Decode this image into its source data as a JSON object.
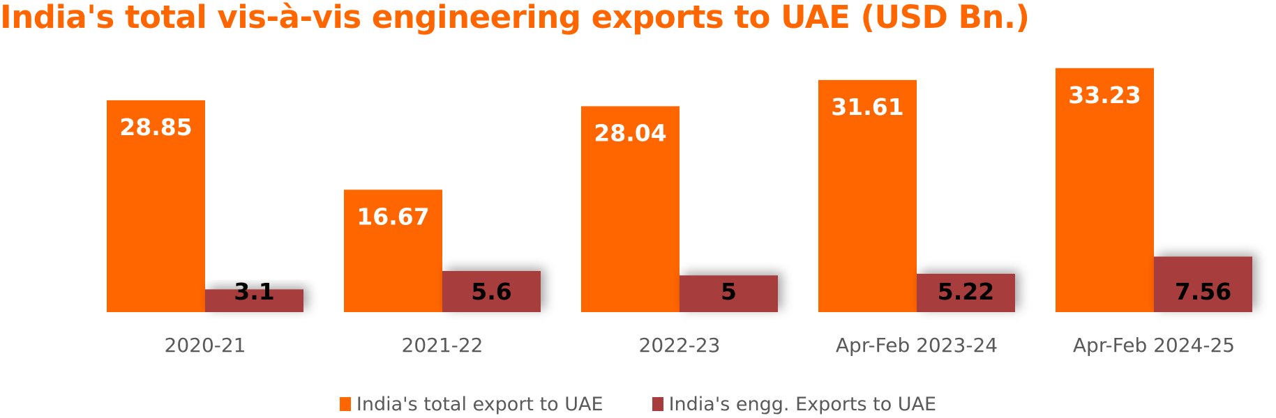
{
  "chart_data": {
    "type": "bar",
    "title": "India's total vis-à-vis engineering exports to UAE (USD Bn.)",
    "xlabel": "",
    "ylabel": "",
    "categories": [
      "2020-21",
      "2021-22",
      "2022-23",
      "Apr-Feb 2023-24",
      "Apr-Feb 2024-25"
    ],
    "series": [
      {
        "name": "India's total export to UAE",
        "color": "#FF6600",
        "label_color": "#FFFFFF",
        "values": [
          28.85,
          16.67,
          28.04,
          31.61,
          33.23
        ],
        "labels": [
          "28.85",
          "16.67",
          "28.04",
          "31.61",
          "33.23"
        ]
      },
      {
        "name": "India's engg. Exports to UAE",
        "color": "#A83C3C",
        "label_color": "#000000",
        "values": [
          3.1,
          5.6,
          5,
          5.22,
          7.56
        ],
        "labels": [
          "3.1",
          "5.6",
          "5",
          "5.22",
          "7.56"
        ]
      }
    ],
    "ylim": [
      0,
      35
    ],
    "grid": false,
    "y_axis_visible": false,
    "legend_position": "bottom"
  }
}
